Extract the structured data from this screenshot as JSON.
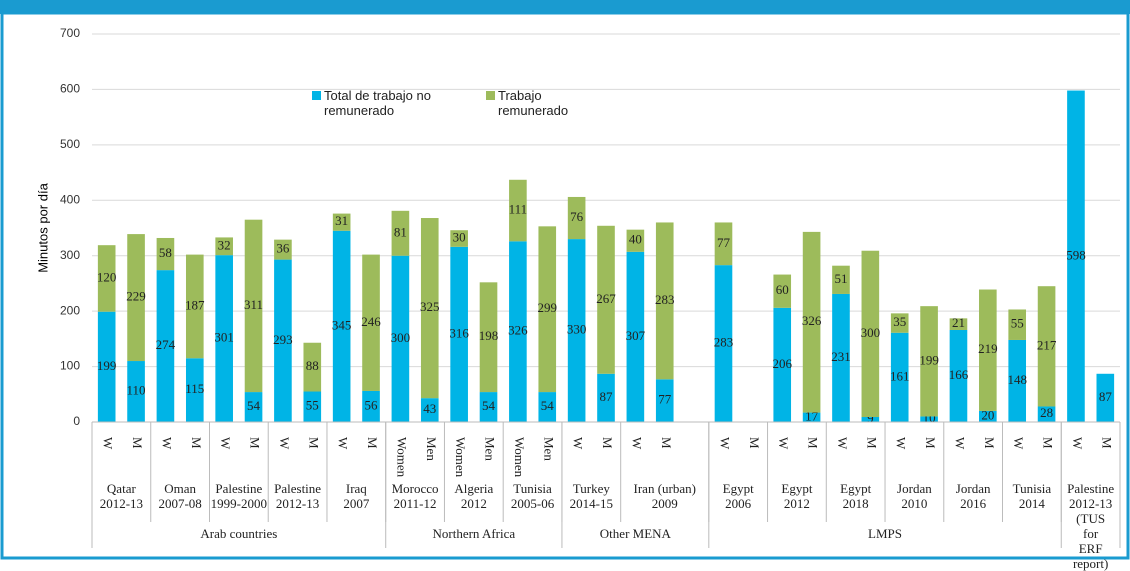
{
  "chart_data": {
    "type": "stacked_bar",
    "y_label": "Minutos por día",
    "ylim": [
      0,
      700
    ],
    "yticks": [
      0,
      100,
      200,
      300,
      400,
      500,
      600,
      700
    ],
    "grid": true,
    "categories": [
      "W",
      "M",
      "W",
      "M",
      "W",
      "M",
      "W",
      "M",
      "W",
      "M",
      "Women",
      "Men",
      "Women",
      "Men",
      "Women",
      "Men",
      "W",
      "M",
      "W",
      "M",
      null,
      "W",
      "M",
      "W",
      "M",
      "W",
      "M",
      "W",
      "M",
      "W",
      "M",
      "W",
      "M",
      "W",
      "M"
    ],
    "series": [
      {
        "name": "Total de trabajo no remunerado",
        "color": "#00b4e6",
        "values": [
          199,
          110,
          274,
          115,
          301,
          54,
          293,
          55,
          345,
          56,
          300,
          43,
          316,
          54,
          326,
          54,
          330,
          87,
          307,
          77,
          null,
          283,
          null,
          206,
          17,
          231,
          9,
          161,
          10,
          166,
          20,
          148,
          28,
          598,
          87
        ]
      },
      {
        "name": "Trabajo remunerado",
        "color": "#9dbb5b",
        "values": [
          120,
          229,
          58,
          187,
          32,
          311,
          36,
          88,
          31,
          246,
          81,
          325,
          30,
          198,
          111,
          299,
          76,
          267,
          40,
          283,
          null,
          77,
          null,
          60,
          326,
          51,
          300,
          35,
          199,
          21,
          219,
          55,
          217,
          null,
          null
        ]
      }
    ],
    "groups": [
      {
        "label": "Qatar\n2012-13",
        "n": 2
      },
      {
        "label": "Oman\n2007-08",
        "n": 2
      },
      {
        "label": "Palestine\n1999-2000",
        "n": 2
      },
      {
        "label": "Palestine\n2012-13",
        "n": 2
      },
      {
        "label": "Iraq\n2007",
        "n": 2
      },
      {
        "label": "Morocco\n2011-12",
        "n": 2
      },
      {
        "label": "Algeria\n2012",
        "n": 2
      },
      {
        "label": "Tunisia\n2005-06",
        "n": 2
      },
      {
        "label": "Turkey\n2014-15",
        "n": 2
      },
      {
        "label": "Iran (urban)\n2009",
        "n": 3
      },
      {
        "label": "Egypt\n2006",
        "n": 2
      },
      {
        "label": "Egypt\n2012",
        "n": 2
      },
      {
        "label": "Egypt\n2018",
        "n": 2
      },
      {
        "label": "Jordan\n2010",
        "n": 2
      },
      {
        "label": "Jordan\n2016",
        "n": 2
      },
      {
        "label": "Tunisia\n2014",
        "n": 2
      },
      {
        "label": "Palestine\n2012-13\n(TUS for\nERF report)",
        "n": 2
      }
    ],
    "regions": [
      {
        "label": "Arab countries",
        "n": 10
      },
      {
        "label": "Northern Africa",
        "n": 6
      },
      {
        "label": "Other MENA",
        "n": 5
      },
      {
        "label": "LMPS",
        "n": 12
      },
      {
        "label": null,
        "n": 2
      }
    ]
  }
}
